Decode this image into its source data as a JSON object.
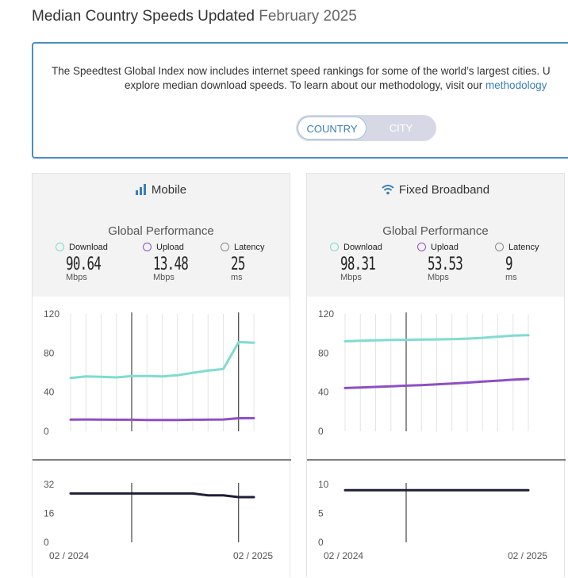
{
  "page": {
    "title": "Median Country Speeds Updated",
    "date": "February 2025",
    "info_line1": "The Speedtest Global Index now includes internet speed rankings for some of the world’s largest cities. U",
    "info_line2_text": "explore median download speeds. To learn about our methodology, visit our ",
    "info_line2_link": "methodology",
    "toggle": {
      "active": "COUNTRY",
      "inactive": "CITY"
    }
  },
  "colors": {
    "download": "#7fdcd0",
    "upload": "#8e4fc4",
    "latency": "#1f1f3a",
    "accent": "#3a7fb8"
  },
  "panels": [
    {
      "title": "Mobile",
      "icon": "signal-bars-icon",
      "subtitle": "Global Performance",
      "metrics": [
        {
          "label": "Download",
          "value": "90.64",
          "unit": "Mbps",
          "icon": "download-icon"
        },
        {
          "label": "Upload",
          "value": "13.48",
          "unit": "Mbps",
          "icon": "upload-icon"
        },
        {
          "label": "Latency",
          "value": "25",
          "unit": "ms",
          "icon": "latency-icon"
        }
      ]
    },
    {
      "title": "Fixed Broadband",
      "icon": "wifi-icon",
      "subtitle": "Global Performance",
      "metrics": [
        {
          "label": "Download",
          "value": "98.31",
          "unit": "Mbps",
          "icon": "download-icon"
        },
        {
          "label": "Upload",
          "value": "53.53",
          "unit": "Mbps",
          "icon": "upload-icon"
        },
        {
          "label": "Latency",
          "value": "9",
          "unit": "ms",
          "icon": "latency-icon"
        }
      ]
    }
  ],
  "chart_data": [
    {
      "type": "line",
      "x": [
        "02 / 2024",
        "03 / 2024",
        "04 / 2024",
        "05 / 2024",
        "06 / 2024",
        "07 / 2024",
        "08 / 2024",
        "09 / 2024",
        "10 / 2024",
        "11 / 2024",
        "12 / 2024",
        "01 / 2025",
        "02 / 2025"
      ],
      "x_tick_labels": [
        "02 / 2024",
        "02 / 2025"
      ],
      "series": [
        {
          "name": "Download",
          "values": [
            54.5,
            56.2,
            55.8,
            55.1,
            56.6,
            56.5,
            56.2,
            57.3,
            59.8,
            62.1,
            63.7,
            91.2,
            90.64
          ]
        },
        {
          "name": "Upload",
          "values": [
            12.0,
            12.1,
            11.9,
            11.8,
            11.8,
            11.6,
            11.5,
            11.6,
            11.8,
            11.9,
            12.1,
            13.4,
            13.48
          ]
        }
      ],
      "ylim": [
        0,
        120
      ],
      "yticks": [
        0,
        40,
        80,
        120
      ],
      "vlines_index": [
        4,
        11
      ],
      "grid": true
    },
    {
      "type": "line",
      "x": [
        "02 / 2024",
        "03 / 2024",
        "04 / 2024",
        "05 / 2024",
        "06 / 2024",
        "07 / 2024",
        "08 / 2024",
        "09 / 2024",
        "10 / 2024",
        "11 / 2024",
        "12 / 2024",
        "01 / 2025",
        "02 / 2025"
      ],
      "x_tick_labels": [
        "02 / 2024",
        "02 / 2025"
      ],
      "series": [
        {
          "name": "Latency",
          "values": [
            27,
            27,
            27,
            27,
            27,
            27,
            27,
            27,
            27,
            26,
            26,
            25,
            25
          ]
        }
      ],
      "ylim": [
        0,
        32
      ],
      "yticks": [
        0,
        16,
        32
      ],
      "vlines_index": [
        4,
        11
      ],
      "grid": false
    },
    {
      "type": "line",
      "x": [
        "02 / 2024",
        "03 / 2024",
        "04 / 2024",
        "05 / 2024",
        "06 / 2024",
        "07 / 2024",
        "08 / 2024",
        "09 / 2024",
        "10 / 2024",
        "11 / 2024",
        "12 / 2024",
        "01 / 2025",
        "02 / 2025"
      ],
      "x_tick_labels": [
        "02 / 2024",
        "02 / 2025"
      ],
      "series": [
        {
          "name": "Download",
          "values": [
            92.0,
            92.6,
            93.1,
            93.4,
            93.6,
            93.8,
            94.0,
            94.3,
            94.8,
            95.6,
            96.8,
            97.9,
            98.31
          ]
        },
        {
          "name": "Upload",
          "values": [
            44.3,
            44.8,
            45.4,
            46.0,
            46.7,
            47.3,
            48.0,
            48.8,
            49.8,
            50.8,
            51.8,
            52.8,
            53.53
          ]
        }
      ],
      "ylim": [
        0,
        120
      ],
      "yticks": [
        0,
        40,
        80,
        120
      ],
      "vlines_index": [
        4
      ],
      "grid": true
    },
    {
      "type": "line",
      "x": [
        "02 / 2024",
        "03 / 2024",
        "04 / 2024",
        "05 / 2024",
        "06 / 2024",
        "07 / 2024",
        "08 / 2024",
        "09 / 2024",
        "10 / 2024",
        "11 / 2024",
        "12 / 2024",
        "01 / 2025",
        "02 / 2025"
      ],
      "x_tick_labels": [
        "02 / 2024",
        "02 / 2025"
      ],
      "series": [
        {
          "name": "Latency",
          "values": [
            9,
            9,
            9,
            9,
            9,
            9,
            9,
            9,
            9,
            9,
            9,
            9,
            9
          ]
        }
      ],
      "ylim": [
        0,
        10
      ],
      "yticks": [
        0,
        5,
        10
      ],
      "vlines_index": [
        4
      ],
      "grid": false
    }
  ]
}
